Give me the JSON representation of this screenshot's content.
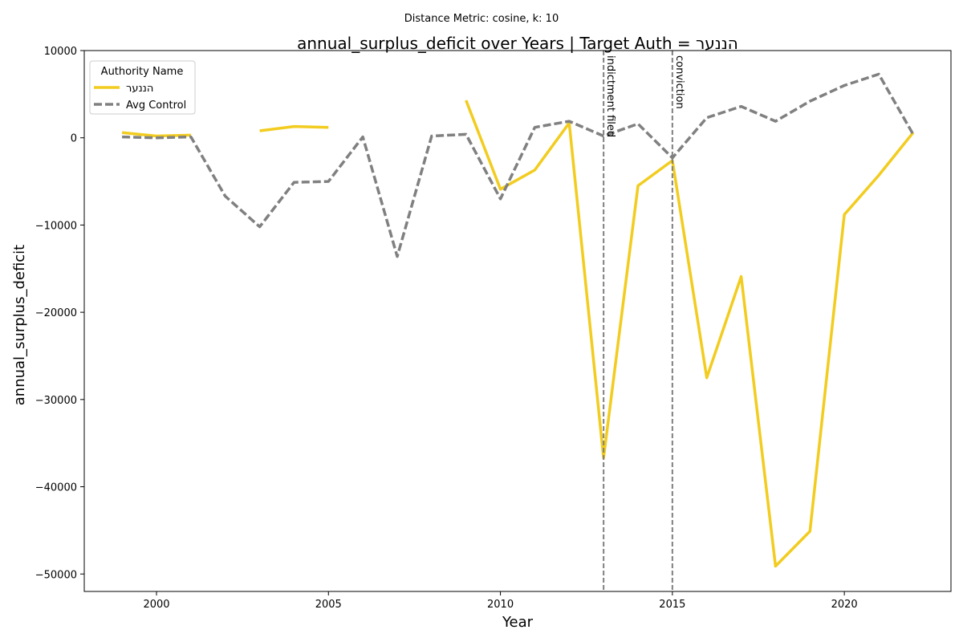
{
  "chart_data": {
    "type": "line",
    "suptitle": "Distance Metric: cosine, k: 10",
    "title": "annual_surplus_deficit over Years | Target Auth = הננער",
    "xlabel": "Year",
    "ylabel": "annual_surplus_deficit",
    "xlim": [
      1997.9,
      2023.1
    ],
    "ylim": [
      -52000,
      10000
    ],
    "xticks": [
      2000,
      2005,
      2010,
      2015,
      2020
    ],
    "yticks": [
      -50000,
      -40000,
      -30000,
      -20000,
      -10000,
      0,
      10000
    ],
    "xtick_labels": [
      "2000",
      "2005",
      "2010",
      "2015",
      "2020"
    ],
    "ytick_labels": [
      "−50000",
      "−40000",
      "−30000",
      "−20000",
      "−10000",
      "0",
      "10000"
    ],
    "grid": false,
    "legend": {
      "title": "Authority Name",
      "placement": "top-left"
    },
    "series": [
      {
        "name": "הננער",
        "color": "#f2cc1f",
        "style": "solid",
        "x": [
          1999,
          2000,
          2001,
          2002,
          2003,
          2004,
          2005,
          2006,
          2007,
          2008,
          2009,
          2010,
          2011,
          2012,
          2013,
          2014,
          2015,
          2016,
          2017,
          2018,
          2019,
          2020,
          2021,
          2022
        ],
        "y": [
          600,
          200,
          300,
          null,
          800,
          1300,
          1200,
          null,
          null,
          null,
          4300,
          -5900,
          -3700,
          1700,
          -36700,
          -5500,
          -2600,
          -27500,
          -15900,
          -49100,
          -45100,
          -8800,
          -4300,
          600
        ]
      },
      {
        "name": "Avg Control",
        "color": "#808080",
        "style": "dashed",
        "x": [
          1999,
          2000,
          2001,
          2002,
          2003,
          2004,
          2005,
          2006,
          2007,
          2008,
          2009,
          2010,
          2011,
          2012,
          2013,
          2014,
          2015,
          2016,
          2017,
          2018,
          2019,
          2020,
          2021,
          2022
        ],
        "y": [
          100,
          0,
          100,
          -6700,
          -10200,
          -5100,
          -5000,
          100,
          -13600,
          200,
          400,
          -7000,
          1200,
          1900,
          200,
          1600,
          -2300,
          2300,
          3600,
          1900,
          4200,
          6000,
          7300,
          400
        ]
      }
    ],
    "annotations": [
      {
        "x": 2013,
        "label": "indictment filed"
      },
      {
        "x": 2015,
        "label": "conviction"
      }
    ]
  }
}
